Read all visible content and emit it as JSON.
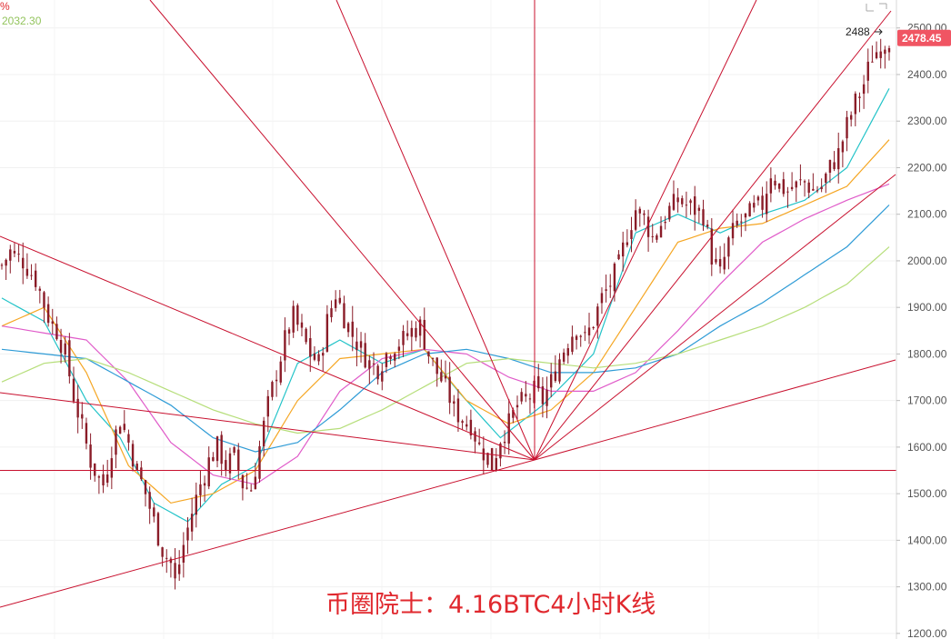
{
  "chart_data": {
    "type": "candlestick",
    "title": "币圈院士：4.16BTC4小时K线",
    "legend": {
      "partial_text": "%",
      "value_text": "2032.30"
    },
    "y_axis": {
      "side": "right",
      "ylim": [
        1188,
        2560
      ],
      "ticks": [
        1200,
        1300,
        1400,
        1500,
        1600,
        1700,
        1800,
        1900,
        2000,
        2100,
        2200,
        2300,
        2400,
        2500
      ],
      "tick_labels": [
        "1200.00",
        "1300.00",
        "1400.00",
        "1500.00",
        "1600.00",
        "1700.00",
        "1800.00",
        "1900.00",
        "2000.00",
        "2100.00",
        "2200.00",
        "2300.00",
        "2400.00",
        "2500.00"
      ]
    },
    "last_price": {
      "value": 2478.45,
      "label": "2478.45"
    },
    "high_marker": {
      "value": 2488,
      "label": "2488"
    },
    "price_path": [
      [
        0,
        1990
      ],
      [
        2,
        2020
      ],
      [
        5,
        2000
      ],
      [
        8,
        1960
      ],
      [
        11,
        1880
      ],
      [
        13,
        1850
      ],
      [
        15,
        1800
      ],
      [
        17,
        1710
      ],
      [
        19,
        1640
      ],
      [
        21,
        1570
      ],
      [
        23,
        1530
      ],
      [
        24,
        1520
      ],
      [
        26,
        1600
      ],
      [
        28,
        1660
      ],
      [
        30,
        1610
      ],
      [
        32,
        1550
      ],
      [
        34,
        1500
      ],
      [
        36,
        1440
      ],
      [
        38,
        1380
      ],
      [
        40,
        1350
      ],
      [
        41,
        1310
      ],
      [
        43,
        1390
      ],
      [
        45,
        1460
      ],
      [
        47,
        1520
      ],
      [
        49,
        1570
      ],
      [
        51,
        1600
      ],
      [
        53,
        1560
      ],
      [
        55,
        1580
      ],
      [
        57,
        1520
      ],
      [
        59,
        1510
      ],
      [
        61,
        1600
      ],
      [
        63,
        1690
      ],
      [
        65,
        1760
      ],
      [
        67,
        1830
      ],
      [
        69,
        1880
      ],
      [
        71,
        1840
      ],
      [
        73,
        1800
      ],
      [
        75,
        1780
      ],
      [
        77,
        1870
      ],
      [
        79,
        1930
      ],
      [
        81,
        1880
      ],
      [
        83,
        1840
      ],
      [
        85,
        1810
      ],
      [
        87,
        1780
      ],
      [
        89,
        1770
      ],
      [
        91,
        1800
      ],
      [
        93,
        1820
      ],
      [
        95,
        1830
      ],
      [
        97,
        1850
      ],
      [
        99,
        1860
      ],
      [
        101,
        1800
      ],
      [
        103,
        1760
      ],
      [
        105,
        1730
      ],
      [
        107,
        1680
      ],
      [
        109,
        1660
      ],
      [
        111,
        1650
      ],
      [
        113,
        1600
      ],
      [
        115,
        1580
      ],
      [
        116,
        1560
      ],
      [
        118,
        1620
      ],
      [
        120,
        1650
      ],
      [
        122,
        1690
      ],
      [
        124,
        1700
      ],
      [
        126,
        1720
      ],
      [
        128,
        1700
      ],
      [
        130,
        1740
      ],
      [
        132,
        1790
      ],
      [
        134,
        1830
      ],
      [
        136,
        1860
      ],
      [
        138,
        1830
      ],
      [
        140,
        1870
      ],
      [
        142,
        1920
      ],
      [
        144,
        1950
      ],
      [
        146,
        1990
      ],
      [
        148,
        2060
      ],
      [
        150,
        2110
      ],
      [
        152,
        2090
      ],
      [
        154,
        2050
      ],
      [
        156,
        2080
      ],
      [
        158,
        2110
      ],
      [
        160,
        2130
      ],
      [
        162,
        2120
      ],
      [
        164,
        2110
      ],
      [
        166,
        2100
      ],
      [
        168,
        2010
      ],
      [
        170,
        1970
      ],
      [
        172,
        2040
      ],
      [
        174,
        2080
      ],
      [
        176,
        2090
      ],
      [
        178,
        2110
      ],
      [
        180,
        2120
      ],
      [
        182,
        2190
      ],
      [
        184,
        2160
      ],
      [
        186,
        2150
      ],
      [
        188,
        2160
      ],
      [
        190,
        2170
      ],
      [
        192,
        2150
      ],
      [
        194,
        2160
      ],
      [
        196,
        2200
      ],
      [
        198,
        2230
      ],
      [
        200,
        2290
      ],
      [
        202,
        2340
      ],
      [
        204,
        2380
      ],
      [
        206,
        2440
      ],
      [
        208,
        2460
      ],
      [
        210,
        2478
      ]
    ],
    "moving_averages": [
      {
        "color": "#22c3c8",
        "points": [
          [
            0,
            1920
          ],
          [
            10,
            1870
          ],
          [
            20,
            1700
          ],
          [
            28,
            1620
          ],
          [
            36,
            1480
          ],
          [
            44,
            1440
          ],
          [
            52,
            1520
          ],
          [
            60,
            1560
          ],
          [
            70,
            1780
          ],
          [
            80,
            1830
          ],
          [
            90,
            1780
          ],
          [
            100,
            1810
          ],
          [
            108,
            1720
          ],
          [
            118,
            1620
          ],
          [
            128,
            1690
          ],
          [
            140,
            1800
          ],
          [
            150,
            2060
          ],
          [
            160,
            2100
          ],
          [
            170,
            2060
          ],
          [
            180,
            2100
          ],
          [
            190,
            2130
          ],
          [
            200,
            2200
          ],
          [
            210,
            2370
          ]
        ]
      },
      {
        "color": "#f5a623",
        "points": [
          [
            0,
            1860
          ],
          [
            10,
            1900
          ],
          [
            20,
            1760
          ],
          [
            30,
            1560
          ],
          [
            40,
            1480
          ],
          [
            50,
            1500
          ],
          [
            60,
            1550
          ],
          [
            70,
            1700
          ],
          [
            80,
            1790
          ],
          [
            90,
            1800
          ],
          [
            100,
            1810
          ],
          [
            110,
            1700
          ],
          [
            120,
            1650
          ],
          [
            130,
            1680
          ],
          [
            140,
            1760
          ],
          [
            150,
            1900
          ],
          [
            160,
            2040
          ],
          [
            170,
            2070
          ],
          [
            180,
            2080
          ],
          [
            190,
            2120
          ],
          [
            200,
            2160
          ],
          [
            210,
            2260
          ]
        ]
      },
      {
        "color": "#e05bc9",
        "points": [
          [
            0,
            1860
          ],
          [
            20,
            1830
          ],
          [
            30,
            1740
          ],
          [
            40,
            1610
          ],
          [
            50,
            1540
          ],
          [
            60,
            1520
          ],
          [
            70,
            1580
          ],
          [
            80,
            1720
          ],
          [
            90,
            1790
          ],
          [
            100,
            1810
          ],
          [
            110,
            1800
          ],
          [
            120,
            1750
          ],
          [
            130,
            1720
          ],
          [
            140,
            1720
          ],
          [
            150,
            1760
          ],
          [
            160,
            1850
          ],
          [
            170,
            1950
          ],
          [
            180,
            2040
          ],
          [
            190,
            2090
          ],
          [
            200,
            2130
          ],
          [
            210,
            2165
          ]
        ]
      },
      {
        "color": "#2e9bd6",
        "points": [
          [
            0,
            1810
          ],
          [
            20,
            1790
          ],
          [
            30,
            1740
          ],
          [
            40,
            1690
          ],
          [
            50,
            1620
          ],
          [
            60,
            1590
          ],
          [
            70,
            1610
          ],
          [
            80,
            1680
          ],
          [
            90,
            1760
          ],
          [
            100,
            1800
          ],
          [
            110,
            1810
          ],
          [
            120,
            1790
          ],
          [
            130,
            1760
          ],
          [
            140,
            1760
          ],
          [
            150,
            1770
          ],
          [
            160,
            1800
          ],
          [
            170,
            1860
          ],
          [
            180,
            1910
          ],
          [
            190,
            1970
          ],
          [
            200,
            2030
          ],
          [
            210,
            2120
          ]
        ]
      },
      {
        "color": "#b6de7a",
        "points": [
          [
            0,
            1740
          ],
          [
            10,
            1780
          ],
          [
            20,
            1790
          ],
          [
            30,
            1760
          ],
          [
            40,
            1720
          ],
          [
            50,
            1680
          ],
          [
            60,
            1650
          ],
          [
            70,
            1630
          ],
          [
            80,
            1640
          ],
          [
            90,
            1680
          ],
          [
            100,
            1730
          ],
          [
            110,
            1780
          ],
          [
            120,
            1790
          ],
          [
            130,
            1780
          ],
          [
            140,
            1770
          ],
          [
            150,
            1780
          ],
          [
            160,
            1800
          ],
          [
            170,
            1830
          ],
          [
            180,
            1860
          ],
          [
            190,
            1900
          ],
          [
            200,
            1950
          ],
          [
            210,
            2030
          ]
        ]
      }
    ],
    "gann_fan": {
      "origin": {
        "x": 588,
        "y": 506
      },
      "rays": [
        [
          0,
          260
        ],
        [
          0,
          432
        ],
        [
          0,
          668
        ],
        [
          165,
          0
        ],
        [
          370,
          0
        ],
        [
          588,
          0
        ],
        [
          832,
          0
        ],
        [
          980,
          12
        ],
        [
          985,
          192
        ],
        [
          985,
          396
        ]
      ]
    },
    "horizontal_line": {
      "y": 1550
    },
    "colors": {
      "up": "#26a69a",
      "down": "#b01e2c",
      "candle": "#8a1c28",
      "fan": "#c8102e",
      "accent": "#f05563",
      "legend_green": "#93c45d",
      "legend_red": "#e0282e",
      "caption": "#e0282e"
    }
  }
}
